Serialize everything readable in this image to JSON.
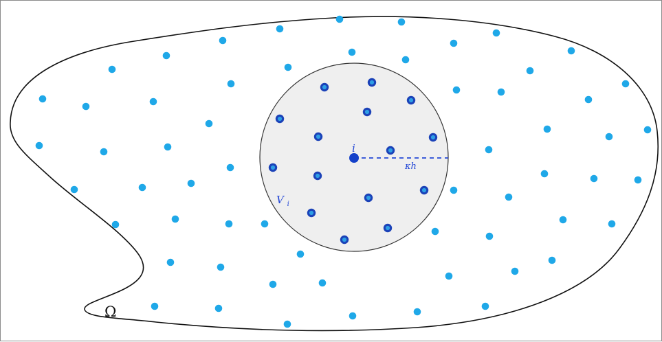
{
  "labels": {
    "domain": "Ω",
    "center_point": "i",
    "radius": "κh",
    "neighborhood": "V",
    "neighborhood_subscript": "i"
  },
  "colors": {
    "background": "#ffffff",
    "boundary": "#111111",
    "neighborhood_fill": "#efefef",
    "neighborhood_stroke": "#333333",
    "outer_points": "#1fa8e8",
    "neighbor_points": "#1b42b8",
    "neighbor_inner": "#2e9fe5",
    "center_point": "#1440c9",
    "radius_line": "#2347d6"
  }
}
